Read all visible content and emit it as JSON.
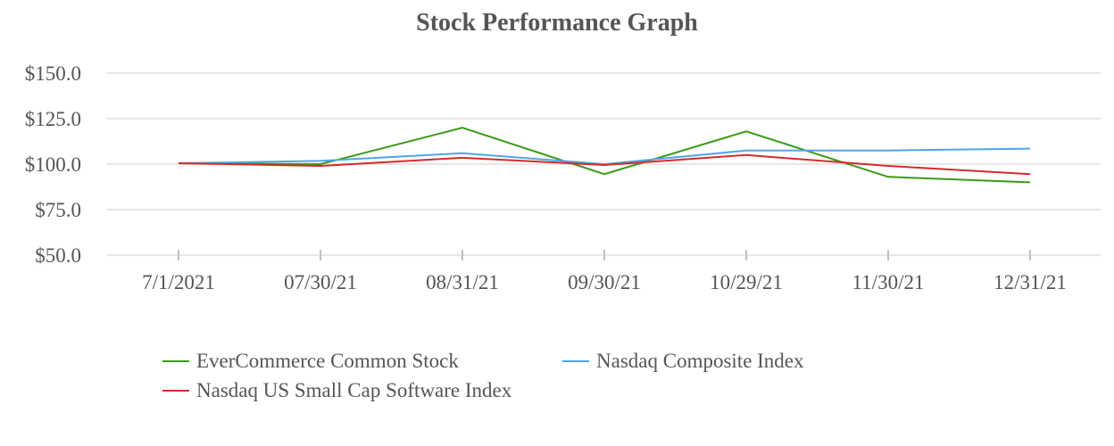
{
  "chart_data": {
    "type": "line",
    "title": "Stock Performance Graph",
    "xlabel": "",
    "ylabel": "",
    "categories": [
      "7/1/2021",
      "07/30/21",
      "08/31/21",
      "09/30/21",
      "10/29/21",
      "11/30/21",
      "12/31/21"
    ],
    "y_ticks": [
      "$150.0",
      "$125.0",
      "$100.0",
      "$75.0",
      "$50.0"
    ],
    "ylim": [
      50,
      150
    ],
    "grid": true,
    "legend_position": "bottom",
    "series": [
      {
        "name": "EverCommerce Common Stock",
        "color": "#3a9a16",
        "values": [
          100.5,
          100.0,
          120.0,
          94.5,
          118.0,
          93.0,
          90.0
        ]
      },
      {
        "name": "Nasdaq Composite Index",
        "color": "#4ea6e6",
        "values": [
          100.5,
          101.8,
          106.0,
          100.0,
          107.5,
          107.5,
          108.5
        ]
      },
      {
        "name": "Nasdaq US Small Cap Software Index",
        "color": "#d62a2a",
        "values": [
          100.5,
          99.0,
          103.5,
          99.5,
          105.0,
          99.0,
          94.5
        ]
      }
    ]
  }
}
